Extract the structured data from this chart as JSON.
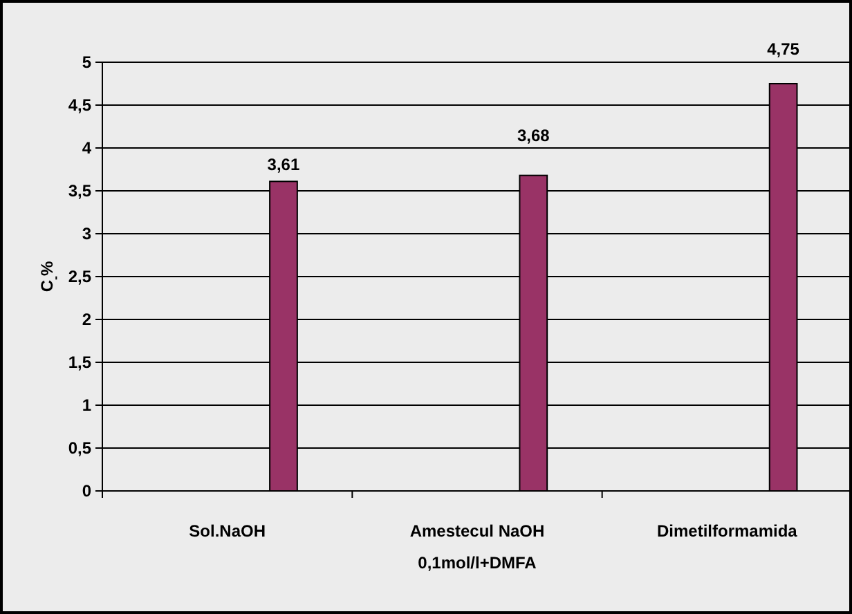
{
  "chart_data": {
    "type": "bar",
    "ylabel": "C$_{-}$%",
    "categories": [
      "Sol.NaOH",
      "Amestecul NaOH 0,1mol/l+DMFA",
      "Dimetilformamida"
    ],
    "values": [
      3.61,
      3.68,
      4.75
    ],
    "color": "#993366",
    "value_labels": [
      "3,61",
      "3,68",
      "4,75"
    ],
    "ylim": [
      0,
      5
    ],
    "yticks": [
      0,
      {
        "value": 0.5,
        "label": "0,5"
      },
      1,
      {
        "value": 1.5,
        "label": "1,5"
      },
      2,
      {
        "value": 2.5,
        "label": "2,5"
      },
      3,
      {
        "value": 3.5,
        "label": "3,5"
      },
      4,
      {
        "value": 4.5,
        "label": "4,5"
      },
      5
    ],
    "grid": "y"
  }
}
